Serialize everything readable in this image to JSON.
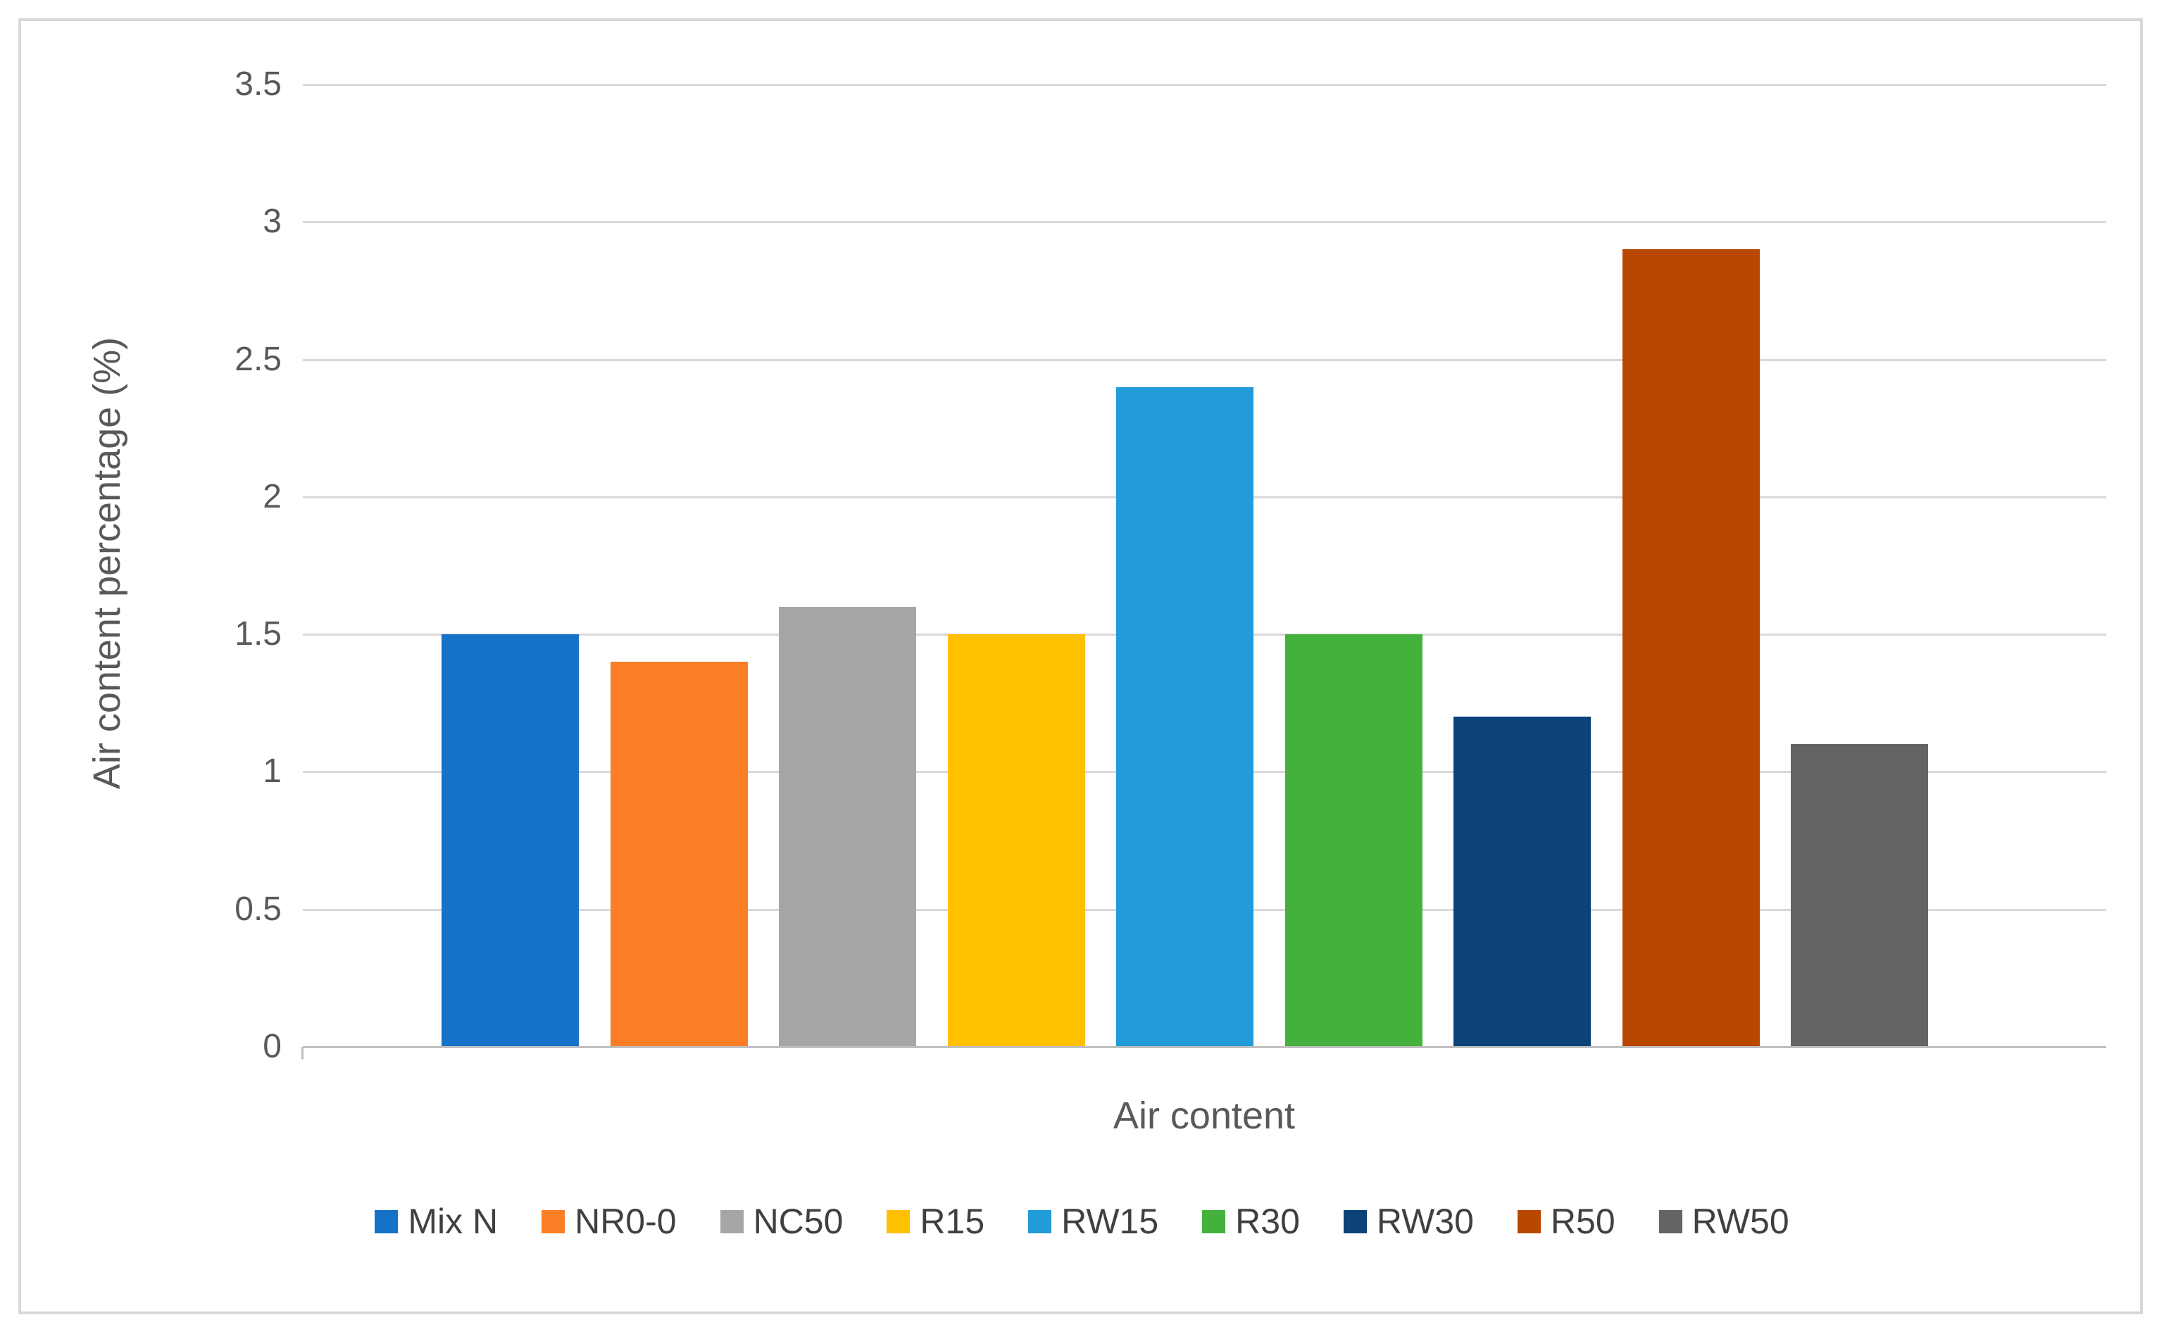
{
  "chart_data": {
    "type": "bar",
    "title": "",
    "xlabel": "Air content",
    "ylabel": "Air content percentage (%)",
    "categories": [
      "Mix N",
      "NR0-0",
      "NC50",
      "R15",
      "RW15",
      "R30",
      "RW30",
      "R50",
      "RW50"
    ],
    "values": [
      1.5,
      1.4,
      1.6,
      1.5,
      2.4,
      1.5,
      1.2,
      2.9,
      1.1
    ],
    "colors": [
      "#1572C8",
      "#FB7D26",
      "#A6A6A6",
      "#FFC000",
      "#219CD8",
      "#44B13C",
      "#0B4379",
      "#B84800",
      "#646464"
    ],
    "ylim": [
      0,
      3.5
    ],
    "yticks": [
      0,
      0.5,
      1,
      1.5,
      2,
      2.5,
      3,
      3.5
    ],
    "grid": "horizontal",
    "gridline_color": "#D9D9D9",
    "axis_line_color": "#BFBFBF",
    "legend_position": "bottom",
    "legend_entries": [
      "Mix N",
      "NR0-0",
      "NC50",
      "R15",
      "RW15",
      "R30",
      "RW30",
      "R50",
      "RW50"
    ]
  }
}
